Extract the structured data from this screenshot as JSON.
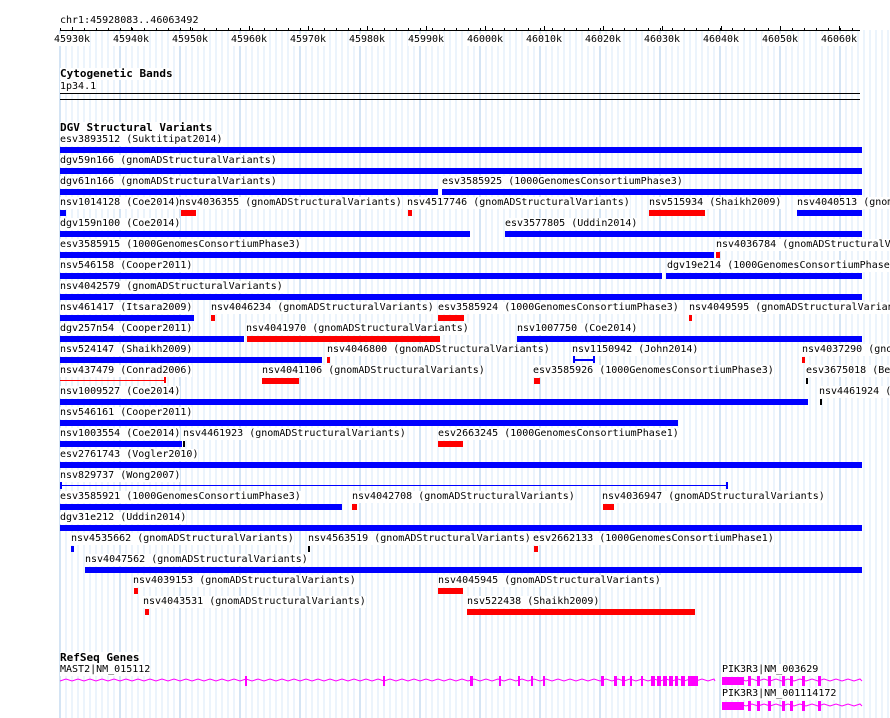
{
  "ruler": {
    "position": "chr1:45928083..46063492",
    "ticks": [
      "45930k",
      "45940k",
      "45950k",
      "45960k",
      "45970k",
      "45980k",
      "45990k",
      "46000k",
      "46010k",
      "46020k",
      "46030k",
      "46040k",
      "46050k",
      "46060k"
    ]
  },
  "cytoband": {
    "title": "Cytogenetic Bands",
    "band": "1p34.1"
  },
  "dgv": {
    "title": "DGV Structural Variants",
    "features": [
      {
        "label": "esv3893512 (Suktitipat2014)",
        "color": "#0000ff"
      },
      {
        "label": "dgv59n166 (gnomADStructuralVariants)",
        "color": "#0000ff"
      },
      {
        "label": "dgv61n166 (gnomADStructuralVariants)",
        "color": "#0000ff"
      },
      {
        "label": "esv3585925 (1000GenomesConsortiumPhase3)",
        "color": "#0000ff"
      },
      {
        "label": "nsv1014128 (Coe2014)",
        "color": "#0000ff"
      },
      {
        "label": "nsv4036355 (gnomADStructuralVariants)",
        "color": "#ff0000"
      },
      {
        "label": "nsv4517746 (gnomADStructuralVariants)",
        "color": "#ff0000"
      },
      {
        "label": "nsv515934 (Shaikh2009)",
        "color": "#ff0000"
      },
      {
        "label": "nsv4040513 (gnom",
        "color": "#0000ff"
      },
      {
        "label": "dgv159n100 (Coe2014)",
        "color": "#0000ff"
      },
      {
        "label": "esv3577805 (Uddin2014)",
        "color": "#0000ff"
      },
      {
        "label": "esv3585915 (1000GenomesConsortiumPhase3)",
        "color": "#0000ff"
      },
      {
        "label": "nsv4036784 (gnomADStructuralV",
        "color": "#ff0000"
      },
      {
        "label": "nsv546158 (Cooper2011)",
        "color": "#0000ff"
      },
      {
        "label": "dgv19e214 (1000GenomesConsortiumPhase3",
        "color": "#0000ff"
      },
      {
        "label": "nsv4042579 (gnomADStructuralVariants)",
        "color": "#0000ff"
      },
      {
        "label": "nsv461417 (Itsara2009)",
        "color": "#0000ff"
      },
      {
        "label": "nsv4046234 (gnomADStructuralVariants)",
        "color": "#ff0000"
      },
      {
        "label": "esv3585924 (1000GenomesConsortiumPhase3)",
        "color": "#ff0000"
      },
      {
        "label": "nsv4049595 (gnomADStructuralVarian",
        "color": "#ff0000"
      },
      {
        "label": "dgv257n54 (Cooper2011)",
        "color": "#0000ff"
      },
      {
        "label": "nsv4041970 (gnomADStructuralVariants)",
        "color": "#ff0000"
      },
      {
        "label": "nsv1007750 (Coe2014)",
        "color": "#0000ff"
      },
      {
        "label": "nsv524147 (Shaikh2009)",
        "color": "#0000ff"
      },
      {
        "label": "nsv4046800 (gnomADStructuralVariants)",
        "color": "#ff0000"
      },
      {
        "label": "nsv1150942 (John2014)",
        "color": "#0000ff"
      },
      {
        "label": "nsv4037290 (gno",
        "color": "#ff0000"
      },
      {
        "label": "nsv437479 (Conrad2006)",
        "color": "#ff0000"
      },
      {
        "label": "nsv4041106 (gnomADStructuralVariants)",
        "color": "#ff0000"
      },
      {
        "label": "esv3585926 (1000GenomesConsortiumPhase3)",
        "color": "#ff0000"
      },
      {
        "label": "esv3675018 (Be",
        "color": "#000000"
      },
      {
        "label": "nsv1009527 (Coe2014)",
        "color": "#0000ff"
      },
      {
        "label": "nsv4461924 (",
        "color": "#000000"
      },
      {
        "label": "nsv546161 (Cooper2011)",
        "color": "#0000ff"
      },
      {
        "label": "nsv1003554 (Coe2014)",
        "color": "#0000ff"
      },
      {
        "label": "nsv4461923 (gnomADStructuralVariants)",
        "color": "#000000"
      },
      {
        "label": "esv2663245 (1000GenomesConsortiumPhase1)",
        "color": "#ff0000"
      },
      {
        "label": "esv2761743 (Vogler2010)",
        "color": "#0000ff"
      },
      {
        "label": "nsv829737 (Wong2007)",
        "color": "#0000ff"
      },
      {
        "label": "esv3585921 (1000GenomesConsortiumPhase3)",
        "color": "#0000ff"
      },
      {
        "label": "nsv4042708 (gnomADStructuralVariants)",
        "color": "#ff0000"
      },
      {
        "label": "nsv4036947 (gnomADStructuralVariants)",
        "color": "#ff0000"
      },
      {
        "label": "dgv31e212 (Uddin2014)",
        "color": "#0000ff"
      },
      {
        "label": "nsv4535662 (gnomADStructuralVariants)",
        "color": "#0000ff"
      },
      {
        "label": "nsv4563519 (gnomADStructuralVariants)",
        "color": "#000000"
      },
      {
        "label": "esv2662133 (1000GenomesConsortiumPhase1)",
        "color": "#ff0000"
      },
      {
        "label": "nsv4047562 (gnomADStructuralVariants)",
        "color": "#0000ff"
      },
      {
        "label": "nsv4039153 (gnomADStructuralVariants)",
        "color": "#ff0000"
      },
      {
        "label": "nsv4045945 (gnomADStructuralVariants)",
        "color": "#ff0000"
      },
      {
        "label": "nsv4043531 (gnomADStructuralVariants)",
        "color": "#ff0000"
      },
      {
        "label": "nsv522438 (Shaikh2009)",
        "color": "#ff0000"
      }
    ]
  },
  "refseq": {
    "title": "RefSeq Genes",
    "genes": [
      {
        "label": "MAST2|NM_015112",
        "color": "#ff00ff"
      },
      {
        "label": "PIK3R3|NM_003629",
        "color": "#ff00ff"
      },
      {
        "label": "PIK3R3|NM_001114172",
        "color": "#ff00ff"
      }
    ]
  }
}
